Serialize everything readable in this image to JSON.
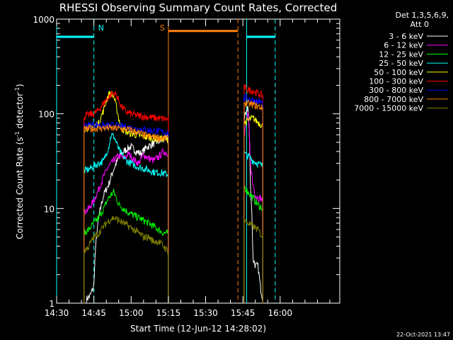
{
  "chart_data": {
    "type": "line",
    "title": "RHESSI Observing Summary Count Rates, Corrected",
    "xlabel": "Start Time (12-Jun-12 14:28:02)",
    "ylabel_main": "Corrected Count Rate (s",
    "ylabel_sup1": "-1",
    "ylabel_mid": " detector",
    "ylabel_sup2": "-1",
    "ylabel_end": ")",
    "yscale": "log",
    "ylim": [
      1,
      1000
    ],
    "xlim": [
      2.0,
      116.0
    ],
    "x_unit": "minutes after 14:28:02",
    "yticks": [
      {
        "label": "1",
        "v": 1
      },
      {
        "label": "10",
        "v": 10
      },
      {
        "label": "100",
        "v": 100
      },
      {
        "label": "1000",
        "v": 1000
      }
    ],
    "xticks": [
      {
        "label": "14:30",
        "v": 2
      },
      {
        "label": "14:45",
        "v": 17
      },
      {
        "label": "15:00",
        "v": 32
      },
      {
        "label": "15:15",
        "v": 47
      },
      {
        "label": "15:30",
        "v": 62
      },
      {
        "label": "15:45",
        "v": 77
      },
      {
        "label": "16:00",
        "v": 92
      }
    ],
    "legend_header": [
      "Det 1,3,5,6,9,",
      "Att 0"
    ],
    "legend_placement": "right",
    "timestamp": "22-Oct-2021 13:47",
    "markers": [
      {
        "label": "N",
        "color": "#00ffff",
        "x": 17.0
      },
      {
        "label": "S",
        "color": "#ff8000",
        "x": 47.0
      }
    ],
    "bars": [
      {
        "color": "#00ffff",
        "x0": 2.0,
        "x1": 17.0,
        "y": 650
      },
      {
        "color": "#ff8000",
        "x0": 47.0,
        "x1": 75.0,
        "y": 750
      },
      {
        "color": "#00ffff",
        "x0": 78.5,
        "x1": 90.0,
        "y": 650
      }
    ],
    "vlines": [
      {
        "color": "#00ffff",
        "x": 2.0,
        "dash": false
      },
      {
        "color": "#00ffff",
        "x": 17.0,
        "dash": true
      },
      {
        "color": "#ff8000",
        "x": 47.0,
        "dash": false
      },
      {
        "color": "#ff8000",
        "x": 75.0,
        "dash": true
      },
      {
        "color": "#00ffff",
        "x": 78.5,
        "dash": false
      },
      {
        "color": "#00ffff",
        "x": 90.0,
        "dash": true
      }
    ],
    "series": [
      {
        "name": "3 - 6 keV",
        "color": "#ffffff",
        "segments": [
          {
            "x": [
              14.0,
              15.5,
              17.0,
              19.0,
              21.0,
              23.0,
              24.5,
              26.0,
              28.0,
              30.0,
              32.0,
              34.0,
              36.0,
              38.0,
              40.0,
              42.0,
              44.0,
              46.0,
              47.0
            ],
            "y": [
              1.1,
              1.2,
              1.5,
              8,
              14,
              18,
              24,
              30,
              38,
              42,
              45,
              40,
              38,
              44,
              47,
              50,
              52,
              55,
              55
            ]
          },
          {
            "x": [
              77.5,
              78.0,
              79.0,
              80.0,
              81.0,
              82.0,
              83.0,
              84.0,
              85.0
            ],
            "y": [
              80,
              100,
              120,
              18,
              3,
              2.5,
              2.5,
              1.5,
              1.1
            ]
          }
        ]
      },
      {
        "name": "6 - 12 keV",
        "color": "#ff00ff",
        "segments": [
          {
            "x": [
              13.0,
              15.0,
              17.0,
              19.0,
              21.0,
              23.0,
              25.0,
              27.0,
              29.0,
              31.0,
              33.0,
              35.0,
              37.0,
              39.0,
              41.0,
              43.0,
              45.0,
              47.0
            ],
            "y": [
              9,
              10,
              12,
              16,
              22,
              28,
              32,
              36,
              34,
              38,
              33,
              30,
              37,
              34,
              32,
              35,
              40,
              38
            ]
          },
          {
            "x": [
              77.5,
              78.0,
              79.0,
              80.0,
              81.0,
              82.0,
              83.0,
              84.0,
              85.0
            ],
            "y": [
              55,
              70,
              100,
              30,
              18,
              14,
              13,
              13,
              12
            ]
          }
        ]
      },
      {
        "name": "12 - 25 keV",
        "color": "#00ff00",
        "segments": [
          {
            "x": [
              13.0,
              15.0,
              17.0,
              19.0,
              21.0,
              23.0,
              25.0,
              27.0,
              29.0,
              31.0,
              33.0,
              35.0,
              37.0,
              39.0,
              41.0,
              43.0,
              45.0,
              47.0
            ],
            "y": [
              5.5,
              6,
              7,
              8,
              10,
              13,
              15,
              11,
              10,
              9,
              8.5,
              8,
              7.5,
              7,
              6.5,
              6,
              5.5,
              5.5
            ]
          },
          {
            "x": [
              77.5,
              79.0,
              81.0,
              83.0,
              85.0
            ],
            "y": [
              17,
              15,
              13,
              11,
              10
            ]
          }
        ]
      },
      {
        "name": "25 - 50 keV",
        "color": "#00ffff",
        "segments": [
          {
            "x": [
              13.0,
              15.0,
              17.0,
              19.0,
              21.0,
              23.0,
              24.0,
              25.0,
              26.0,
              27.0,
              28.0,
              30.0,
              32.0,
              34.0,
              36.0,
              38.0,
              40.0,
              42.0,
              44.0,
              46.0,
              47.0
            ],
            "y": [
              25,
              26,
              28,
              30,
              32,
              45,
              60,
              58,
              50,
              42,
              38,
              32,
              30,
              28,
              27,
              26,
              25,
              24,
              24,
              23,
              23
            ]
          },
          {
            "x": [
              77.5,
              79.0,
              81.0,
              83.0,
              85.0
            ],
            "y": [
              38,
              36,
              32,
              30,
              28
            ]
          }
        ]
      },
      {
        "name": "50 - 100 keV",
        "color": "#ffff00",
        "segments": [
          {
            "x": [
              13.0,
              15.0,
              17.0,
              19.0,
              21.0,
              22.0,
              23.0,
              24.0,
              25.0,
              26.0,
              27.0,
              28.0,
              30.0,
              32.0,
              34.0,
              36.0,
              38.0,
              40.0,
              42.0,
              44.0,
              46.0,
              47.0
            ],
            "y": [
              70,
              72,
              74,
              80,
              110,
              140,
              160,
              165,
              150,
              120,
              90,
              70,
              65,
              62,
              60,
              58,
              57,
              56,
              55,
              55,
              54,
              54
            ]
          },
          {
            "x": [
              77.5,
              79.0,
              81.0,
              83.0,
              85.0
            ],
            "y": [
              80,
              85,
              90,
              82,
              75
            ]
          }
        ]
      },
      {
        "name": "100 - 300 keV",
        "color": "#ff0000",
        "segments": [
          {
            "x": [
              13.0,
              15.0,
              17.0,
              19.0,
              21.0,
              23.0,
              24.5,
              26.0,
              27.0,
              28.0,
              30.0,
              32.0,
              34.0,
              36.0,
              38.0,
              40.0,
              42.0,
              44.0,
              46.0,
              47.0
            ],
            "y": [
              95,
              98,
              100,
              110,
              130,
              150,
              165,
              160,
              140,
              120,
              105,
              100,
              97,
              95,
              93,
              92,
              90,
              89,
              88,
              88
            ]
          },
          {
            "x": [
              77.5,
              79.0,
              81.0,
              83.0,
              85.0
            ],
            "y": [
              190,
              180,
              175,
              165,
              155
            ]
          }
        ]
      },
      {
        "name": "300 - 800 keV",
        "color": "#0000ff",
        "segments": [
          {
            "x": [
              13.0,
              15.0,
              17.0,
              19.0,
              21.0,
              23.0,
              25.0,
              27.0,
              29.0,
              31.0,
              33.0,
              35.0,
              37.0,
              39.0,
              41.0,
              43.0,
              45.0,
              47.0
            ],
            "y": [
              75,
              76,
              77,
              76,
              75,
              74,
              76,
              74,
              73,
              72,
              70,
              69,
              68,
              67,
              66,
              65,
              64,
              64
            ]
          },
          {
            "x": [
              77.5,
              79.0,
              81.0,
              83.0,
              85.0
            ],
            "y": [
              150,
              145,
              140,
              135,
              130
            ]
          }
        ]
      },
      {
        "name": "800 - 7000 keV",
        "color": "#ff8000",
        "segments": [
          {
            "x": [
              13.0,
              15.0,
              17.0,
              19.0,
              21.0,
              23.0,
              25.0,
              27.0,
              29.0,
              31.0,
              33.0,
              35.0,
              37.0,
              39.0,
              41.0,
              43.0,
              45.0,
              47.0
            ],
            "y": [
              68,
              69,
              70,
              70,
              71,
              71,
              70,
              70,
              69,
              68,
              66,
              63,
              60,
              58,
              57,
              56,
              55,
              55
            ]
          },
          {
            "x": [
              77.5,
              79.0,
              81.0,
              83.0,
              85.0
            ],
            "y": [
              130,
              128,
              125,
              120,
              115
            ]
          }
        ]
      },
      {
        "name": "7000 - 15000 keV",
        "color": "#808000",
        "segments": [
          {
            "x": [
              13.0,
              15.0,
              17.0,
              19.0,
              21.0,
              23.0,
              25.0,
              27.0,
              29.0,
              31.0,
              33.0,
              35.0,
              37.0,
              39.0,
              41.0,
              43.0,
              45.0,
              47.0
            ],
            "y": [
              3.5,
              4,
              5,
              5.5,
              6.5,
              7.5,
              8,
              7.5,
              7,
              6.5,
              6,
              5.5,
              5,
              5,
              4.5,
              4.5,
              4,
              3.5
            ]
          },
          {
            "x": [
              77.5,
              79.0,
              81.0,
              83.0,
              85.0
            ],
            "y": [
              7.5,
              7,
              6.5,
              6,
              5
            ]
          }
        ]
      }
    ]
  }
}
